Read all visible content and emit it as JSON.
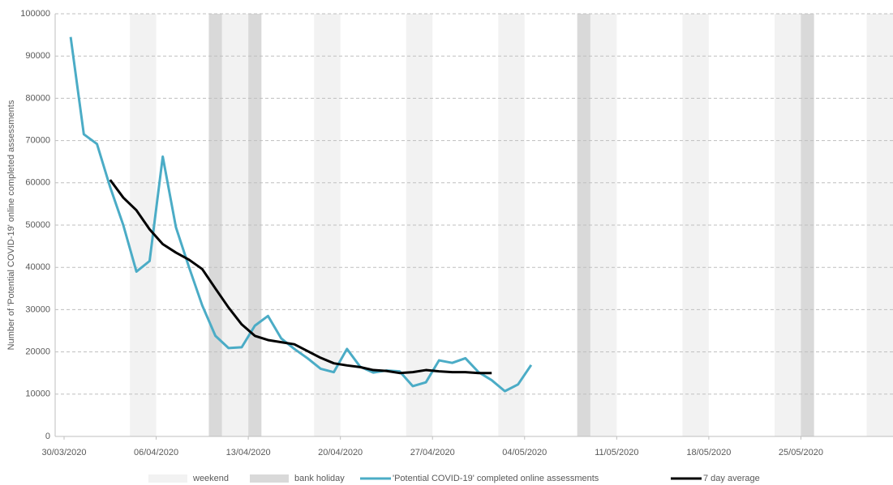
{
  "chart_data": {
    "type": "line",
    "y_label": "Number of 'Potential COVID-19' online completed assessments",
    "x": [
      "30/03/2020",
      "31/03/2020",
      "01/04/2020",
      "02/04/2020",
      "03/04/2020",
      "04/04/2020",
      "05/04/2020",
      "06/04/2020",
      "07/04/2020",
      "08/04/2020",
      "09/04/2020",
      "10/04/2020",
      "11/04/2020",
      "12/04/2020",
      "13/04/2020",
      "14/04/2020",
      "15/04/2020",
      "16/04/2020",
      "17/04/2020",
      "18/04/2020",
      "19/04/2020",
      "20/04/2020",
      "21/04/2020",
      "22/04/2020",
      "23/04/2020",
      "24/04/2020",
      "25/04/2020",
      "26/04/2020",
      "27/04/2020",
      "28/04/2020",
      "29/04/2020",
      "30/04/2020",
      "01/05/2020",
      "02/05/2020",
      "03/05/2020",
      "04/05/2020"
    ],
    "series": [
      {
        "name": "'Potential COVID-19' completed online assessments",
        "color": "#4bacc6",
        "values": [
          94500,
          71500,
          69200,
          59000,
          50000,
          39000,
          41500,
          66200,
          49500,
          40000,
          31000,
          23800,
          20900,
          21100,
          26200,
          28500,
          23200,
          20700,
          18500,
          16000,
          15200,
          20700,
          16500,
          15100,
          15600,
          15400,
          11900,
          12800,
          18000,
          17400,
          18500,
          15200,
          13300,
          10700,
          12300,
          16900
        ]
      },
      {
        "name": "7 day average",
        "color": "#000000",
        "values": [
          null,
          null,
          null,
          60700,
          56500,
          53500,
          49000,
          45500,
          43500,
          41800,
          39600,
          35000,
          30500,
          26500,
          23800,
          22800,
          22300,
          21800,
          20200,
          18600,
          17300,
          16800,
          16400,
          15700,
          15500,
          15000,
          15200,
          15700,
          15400,
          15200,
          15200,
          15000,
          15000,
          null,
          null,
          null
        ]
      }
    ],
    "bands": [
      {
        "name": "weekend",
        "color": "#f2f2f2",
        "dates": [
          "04/04/2020",
          "11/04/2020",
          "18/04/2020",
          "25/04/2020",
          "02/05/2020",
          "09/05/2020",
          "16/05/2020",
          "23/05/2020",
          "30/05/2020"
        ]
      },
      {
        "name": "bank holiday",
        "color": "#d9d9d9",
        "dates": [
          "10/04/2020",
          "13/04/2020",
          "08/05/2020",
          "25/05/2020"
        ]
      }
    ],
    "xlim": [
      "30/03/2020",
      "31/05/2020"
    ],
    "xticks": [
      "30/03/2020",
      "06/04/2020",
      "13/04/2020",
      "20/04/2020",
      "27/04/2020",
      "04/05/2020",
      "11/05/2020",
      "18/05/2020",
      "25/05/2020"
    ],
    "ylim": [
      0,
      100000
    ],
    "yticks": [
      0,
      10000,
      20000,
      30000,
      40000,
      50000,
      60000,
      70000,
      80000,
      90000,
      100000
    ],
    "grid": true,
    "legend": "bottom"
  }
}
